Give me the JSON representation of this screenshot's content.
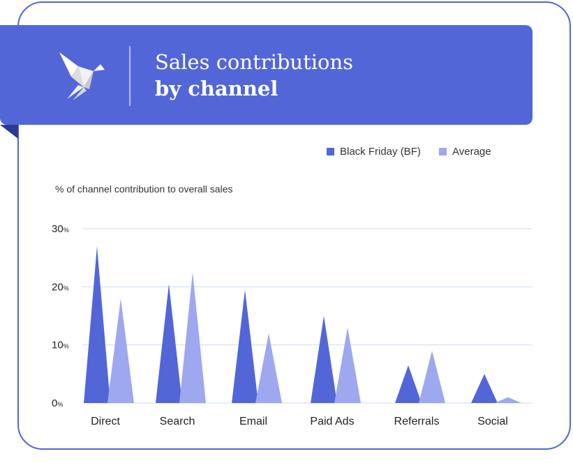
{
  "banner": {
    "title_line1": "Sales contributions",
    "title_line2": "by channel",
    "logo_icon": "origami-bird-icon"
  },
  "colors": {
    "accent": "#5366d8",
    "black_friday": "#5366d8",
    "average": "#9da8ef",
    "grid": "#c9dcef"
  },
  "chart_data": {
    "type": "bar",
    "ylabel": "% of channel contribution to overall sales",
    "categories": [
      "Direct",
      "Search",
      "Email",
      "Paid Ads",
      "Referrals",
      "Social"
    ],
    "series": [
      {
        "name": "Black Friday (BF)",
        "values": [
          27,
          20.5,
          19.5,
          15,
          6.5,
          5
        ]
      },
      {
        "name": "Average",
        "values": [
          18,
          22.5,
          12,
          13,
          9,
          1
        ]
      }
    ],
    "ylim": [
      0,
      30
    ],
    "yticks": [
      {
        "num": "30",
        "unit": "%",
        "value": 30
      },
      {
        "num": "20",
        "unit": "%",
        "value": 20
      },
      {
        "num": "10",
        "unit": "%",
        "value": 10
      },
      {
        "num": "0",
        "unit": "%",
        "value": 0
      }
    ],
    "grid": true,
    "legend_position": "top-right",
    "mark_shape": "triangle"
  }
}
